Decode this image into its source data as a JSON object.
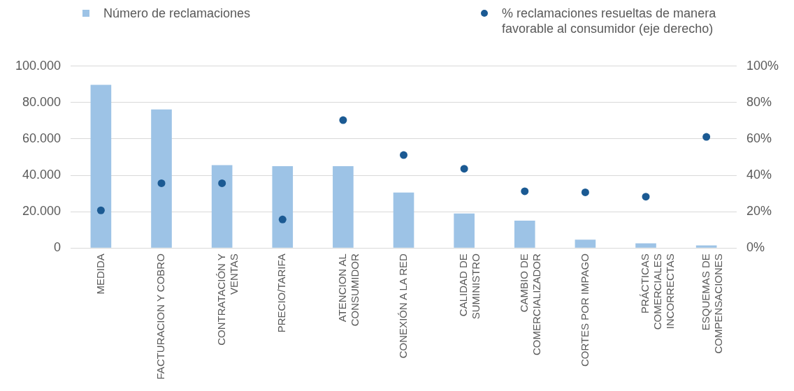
{
  "chart_data": {
    "type": "bar",
    "categories": [
      "MEDIDA",
      "FACTURACION Y COBRO",
      "CONTRATACIÓN Y VENTAS",
      "PRECIO/TARIFA",
      "ATENCION AL CONSUMIDOR",
      "CONEXIÓN A LA RED",
      "CALIDAD DE SUMINISTRO",
      "CAMBIO DE COMERCIALIZADOR",
      "CORTES POR IMPAGO",
      "PRÁCTICAS COMERCIALES INCORRECTAS",
      "ESQUEMAS DE COMPENSACIONES"
    ],
    "series": [
      {
        "name": "Número de reclamaciones",
        "color": "#9dc3e6",
        "values": [
          89700,
          76200,
          45600,
          45000,
          45000,
          30500,
          19000,
          15000,
          4600,
          2600,
          1400
        ]
      },
      {
        "name": "% reclamaciones resueltas de manera favorable al consumidor (eje derecho)",
        "type": "scatter",
        "axis": "y2",
        "color": "#1b5a93",
        "values": [
          20.7,
          35.6,
          35.6,
          15.7,
          70.3,
          51.1,
          43.6,
          31.2,
          30.6,
          28.2,
          61.1
        ]
      }
    ],
    "ylim": [
      0,
      100000
    ],
    "yticks": [
      {
        "value": 0,
        "label": "0"
      },
      {
        "value": 20000,
        "label": "20.000"
      },
      {
        "value": 40000,
        "label": "40.000"
      },
      {
        "value": 60000,
        "label": "60.000"
      },
      {
        "value": 80000,
        "label": "80.000"
      },
      {
        "value": 100000,
        "label": "100.000"
      }
    ],
    "y2lim": [
      0,
      100
    ],
    "y2ticks": [
      {
        "value": 0,
        "label": "0%"
      },
      {
        "value": 20,
        "label": "20%"
      },
      {
        "value": 40,
        "label": "40%"
      },
      {
        "value": 60,
        "label": "60%"
      },
      {
        "value": 80,
        "label": "80%"
      },
      {
        "value": 100,
        "label": "100%"
      }
    ],
    "grid": "y",
    "legend": "top",
    "marker": "circle"
  }
}
